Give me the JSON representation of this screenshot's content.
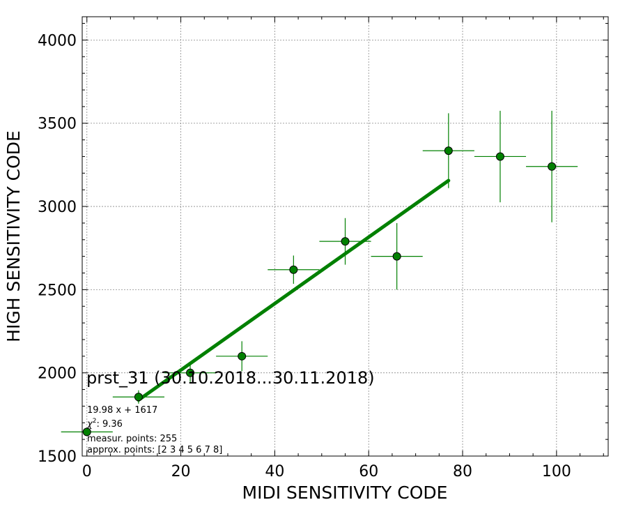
{
  "chart_data": {
    "type": "scatter",
    "xlabel": "MIDI SENSITIVITY CODE",
    "ylabel": "HIGH SENSITIVITY CODE",
    "xlim": [
      -1,
      111
    ],
    "ylim": [
      1500,
      4140
    ],
    "xticks": [
      0,
      20,
      40,
      60,
      80,
      100
    ],
    "yticks": [
      1500,
      2000,
      2500,
      3000,
      3500,
      4000
    ],
    "grid": true,
    "points": [
      {
        "x": 0,
        "y": 1645,
        "xerr": 5.5,
        "yerr": 0
      },
      {
        "x": 11,
        "y": 1855,
        "xerr": 5.5,
        "yerr": 40
      },
      {
        "x": 22,
        "y": 2000,
        "xerr": 5.5,
        "yerr": 55
      },
      {
        "x": 33,
        "y": 2100,
        "xerr": 5.5,
        "yerr": 90
      },
      {
        "x": 44,
        "y": 2620,
        "xerr": 5.5,
        "yerr": 85
      },
      {
        "x": 55,
        "y": 2790,
        "xerr": 5.5,
        "yerr": 140
      },
      {
        "x": 66,
        "y": 2700,
        "xerr": 5.5,
        "yerr": 200
      },
      {
        "x": 77,
        "y": 3335,
        "xerr": 5.5,
        "yerr": 225
      },
      {
        "x": 88,
        "y": 3300,
        "xerr": 5.5,
        "yerr": 275
      },
      {
        "x": 99,
        "y": 3240,
        "xerr": 5.5,
        "yerr": 335
      }
    ],
    "fit": {
      "slope": 19.98,
      "intercept": 1617,
      "x_range": [
        11,
        77
      ]
    },
    "colors": {
      "points": "#008000",
      "fit_line": "#008000",
      "errorbars": "#008000",
      "grid": "#888888"
    },
    "annotation": {
      "title": "prst_31 (30.10.2018...30.11.2018)",
      "fit_text": "19.98 x + 1617",
      "chi2_symbol": "χ",
      "chi2_power": "2",
      "chi2_text": ": 9.36",
      "measur_text": "measur. points: 255",
      "approx_text": "approx. points: [2 3 4 5 6 7 8]"
    }
  }
}
